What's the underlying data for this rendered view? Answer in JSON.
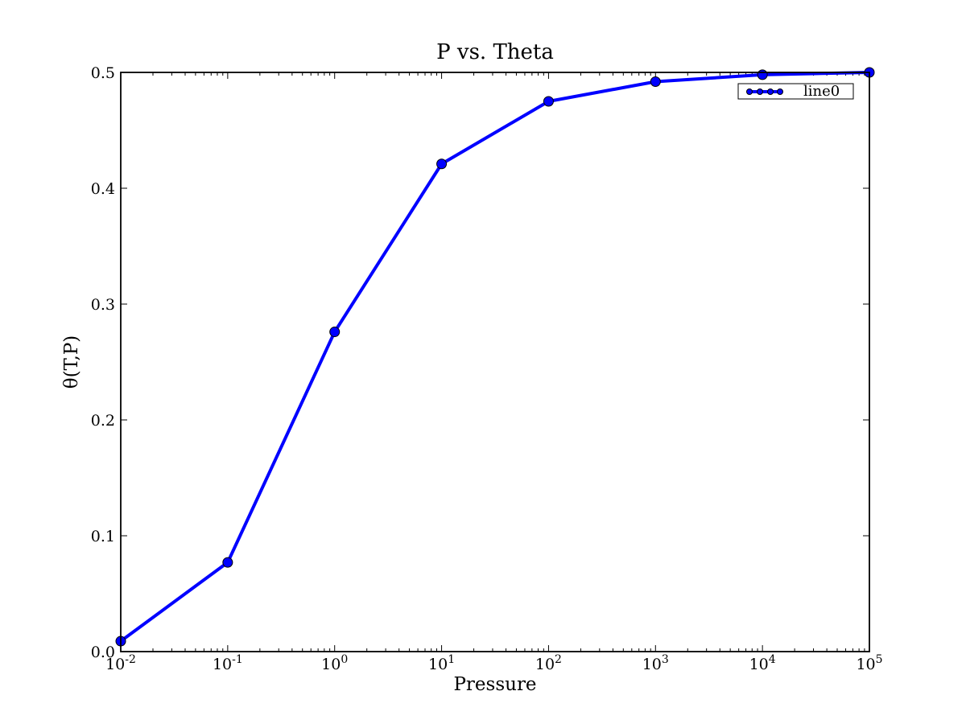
{
  "chart_data": {
    "type": "line",
    "title": "P vs. Theta",
    "xlabel": "Pressure",
    "ylabel": "θ(T,P)",
    "x_scale": "log",
    "xlim": [
      0.01,
      100000
    ],
    "ylim": [
      0.0,
      0.5
    ],
    "grid": false,
    "legend_position": "top-right",
    "x_ticks": [
      {
        "base": "10",
        "exp": "-2"
      },
      {
        "base": "10",
        "exp": "-1"
      },
      {
        "base": "10",
        "exp": "0"
      },
      {
        "base": "10",
        "exp": "1"
      },
      {
        "base": "10",
        "exp": "2"
      },
      {
        "base": "10",
        "exp": "3"
      },
      {
        "base": "10",
        "exp": "4"
      },
      {
        "base": "10",
        "exp": "5"
      }
    ],
    "y_ticks": [
      "0.0",
      "0.1",
      "0.2",
      "0.3",
      "0.4",
      "0.5"
    ],
    "series": [
      {
        "name": "line0",
        "color": "#0000ff",
        "x": [
          0.01,
          0.1,
          1,
          10,
          100,
          1000,
          10000,
          100000
        ],
        "y": [
          0.009,
          0.077,
          0.276,
          0.421,
          0.475,
          0.492,
          0.498,
          0.5
        ]
      }
    ]
  }
}
